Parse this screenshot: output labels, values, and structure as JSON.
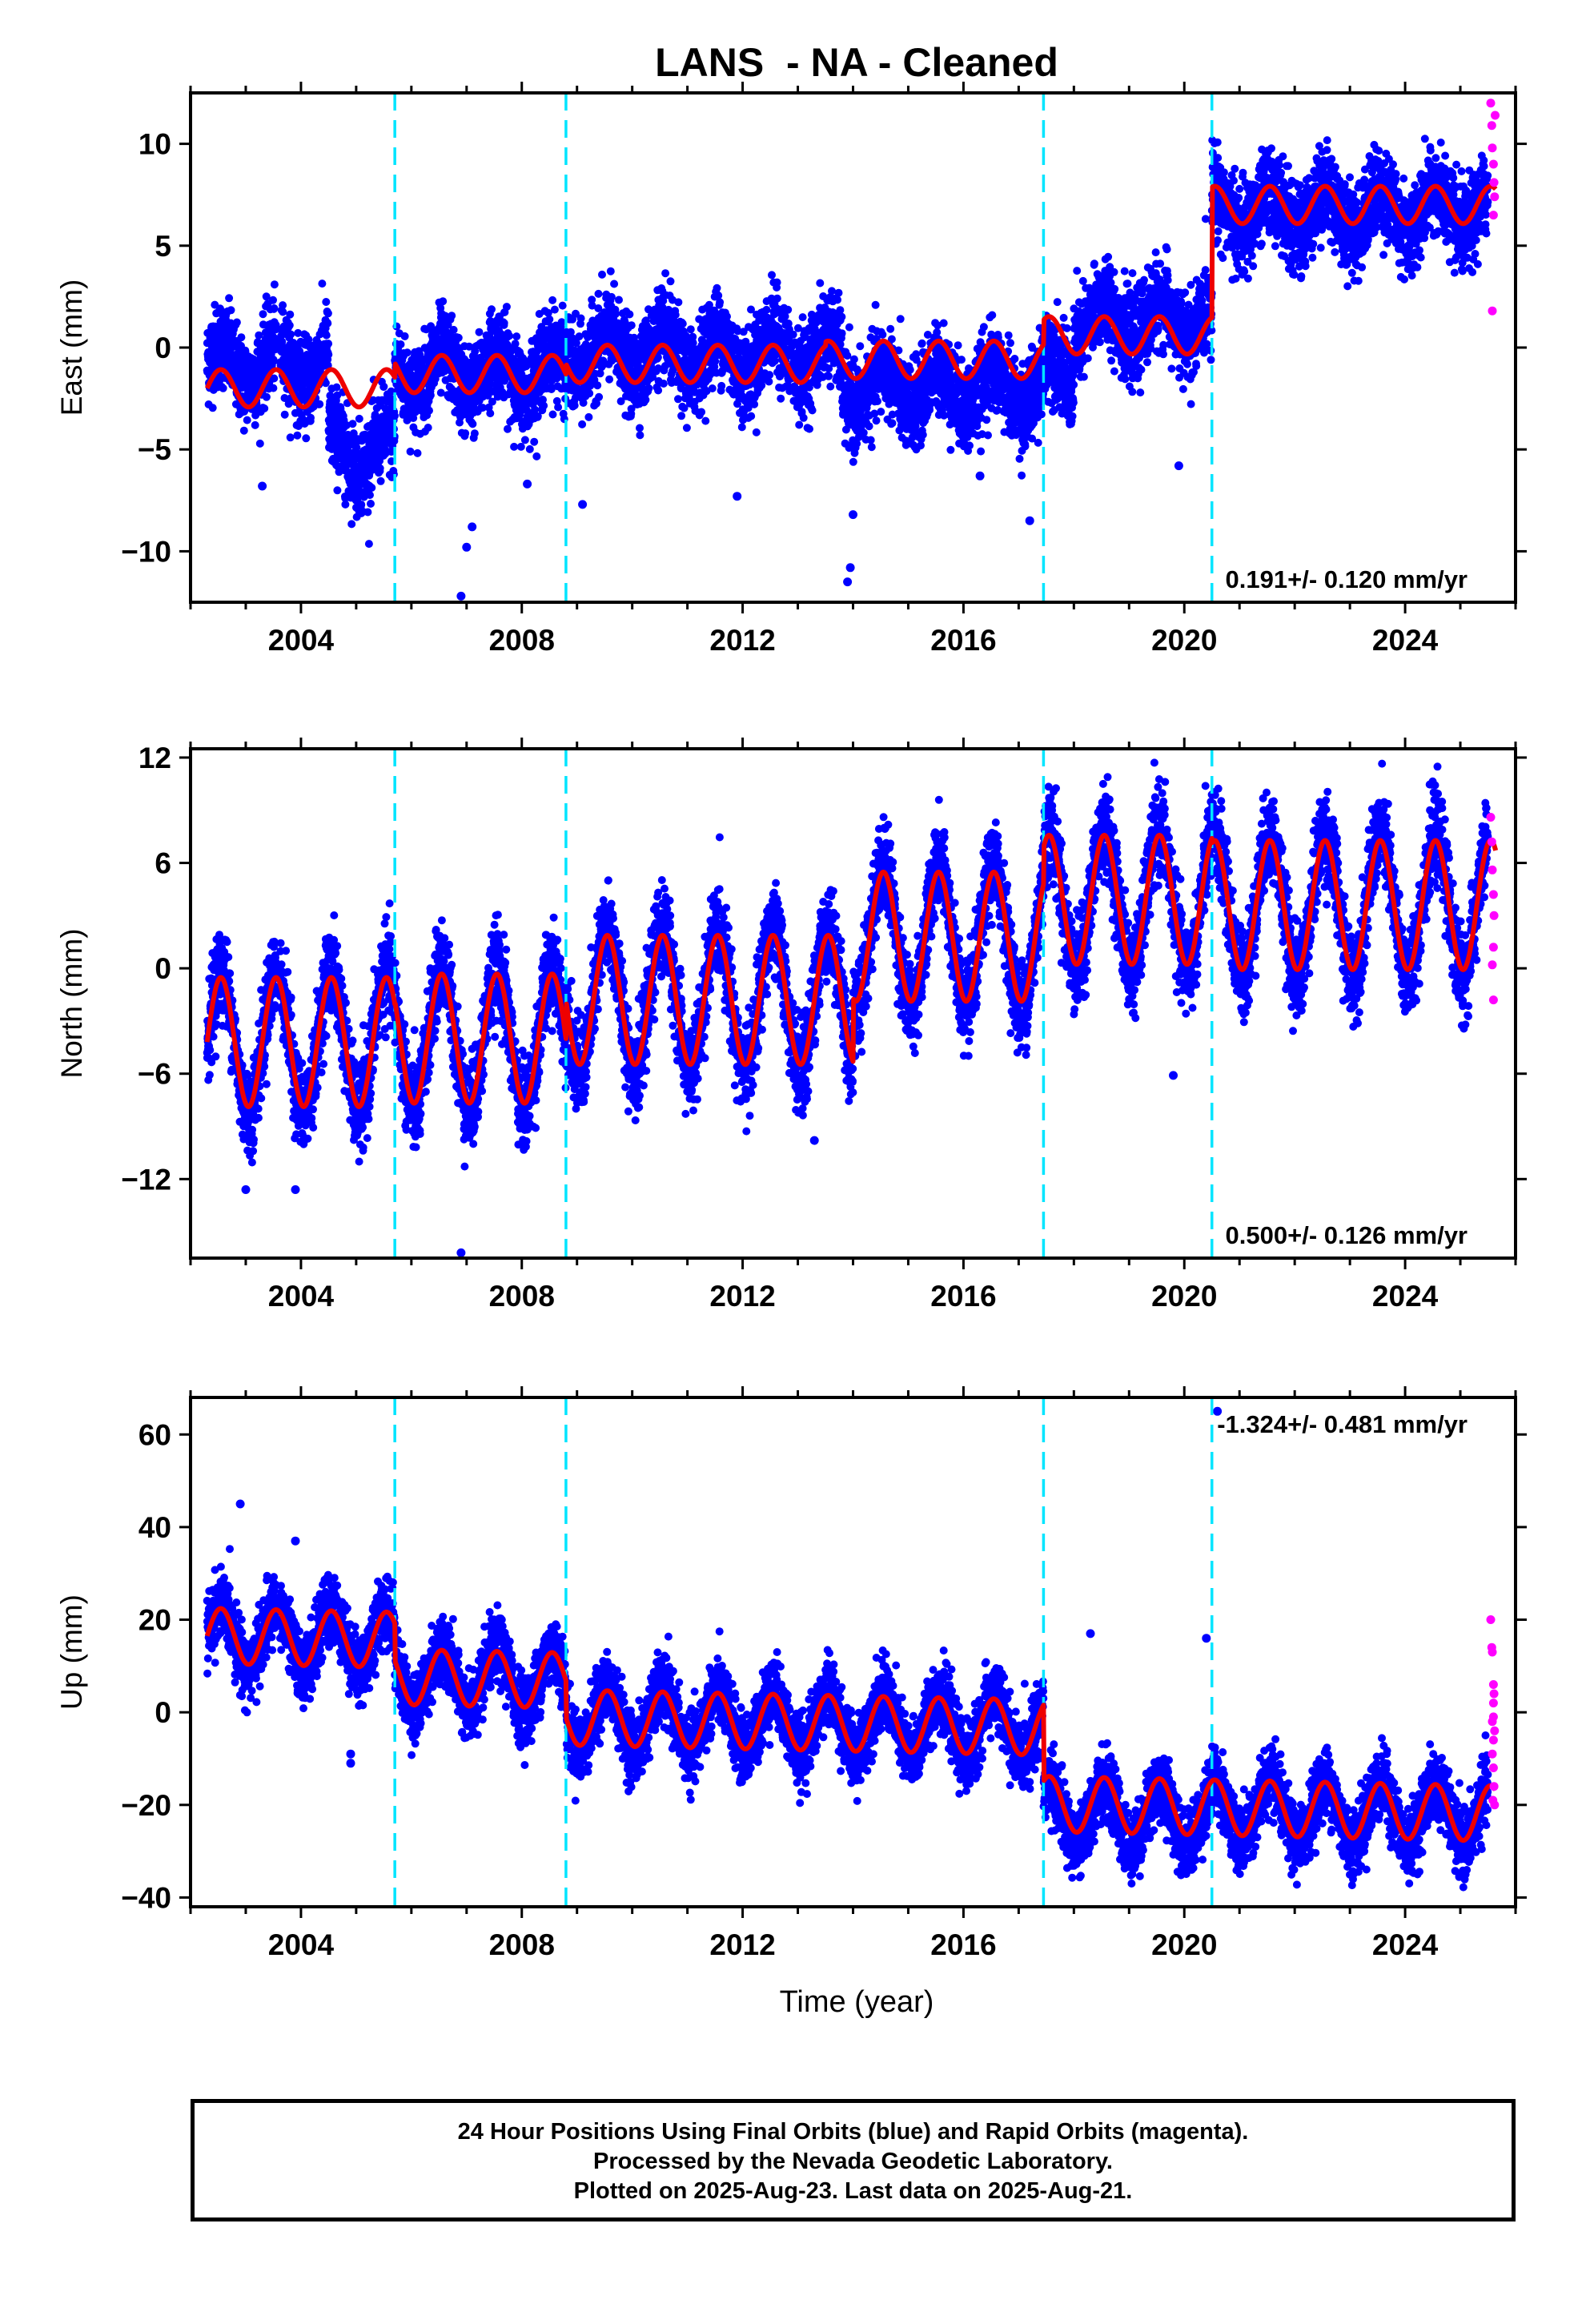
{
  "chart_data": {
    "type": "scatter",
    "title": "LANS  - NA - Cleaned",
    "xlabel": "Time (year)",
    "xlim": [
      2002.0,
      2026.0
    ],
    "x_ticks": [
      2004,
      2008,
      2012,
      2016,
      2020,
      2024
    ],
    "x_tick_labels": [
      "2004",
      "2008",
      "2012",
      "2016",
      "2020",
      "2024"
    ],
    "x_last_final": 2025.5,
    "x_end": 2025.64,
    "equipment_changes": [
      2005.7,
      2008.8,
      2017.45,
      2020.5
    ],
    "colors": {
      "final": "#0000ff",
      "rapid": "#ff00ff",
      "model": "#ee0000",
      "breaks": "#00e5ff",
      "frame": "#000000"
    },
    "legend_text": "",
    "panels": [
      {
        "key": "east",
        "ylabel": "East (mm)",
        "ylim": [
          -12.5,
          12.5
        ],
        "y_ticks": [
          -10,
          -5,
          0,
          5,
          10
        ],
        "y_tick_labels": [
          "−10",
          "−5",
          "0",
          "5",
          "10"
        ],
        "velocity_text": "0.191+/- 0.120 mm/yr",
        "velocity_pos": "bottom-right",
        "noise": 1.05,
        "segments": [
          {
            "start": 2002.3,
            "end": 2004.5,
            "offset": -0.8
          },
          {
            "start": 2004.5,
            "end": 2005.7,
            "offset": -5.0
          },
          {
            "start": 2005.7,
            "end": 2008.8,
            "offset": -1.2
          },
          {
            "start": 2008.8,
            "end": 2013.8,
            "offset": -0.3
          },
          {
            "start": 2013.8,
            "end": 2017.45,
            "offset": -2.0
          },
          {
            "start": 2017.45,
            "end": 2018.0,
            "offset": -1.2
          },
          {
            "start": 2018.0,
            "end": 2020.5,
            "offset": 1.3
          },
          {
            "start": 2020.5,
            "end": 2025.64,
            "offset": 6.7
          }
        ],
        "model_segments": [
          {
            "start": 2002.3,
            "end": 2005.7,
            "offset": -2.0
          },
          {
            "start": 2005.7,
            "end": 2008.8,
            "offset": -1.3
          },
          {
            "start": 2008.8,
            "end": 2013.5,
            "offset": -0.8
          },
          {
            "start": 2013.5,
            "end": 2017.45,
            "offset": -0.6
          },
          {
            "start": 2017.45,
            "end": 2020.5,
            "offset": 0.6
          },
          {
            "start": 2020.5,
            "end": 2025.64,
            "offset": 7.0
          }
        ],
        "seasonal_amp": 1.0,
        "phase": 0.55,
        "outliers": [
          [
            2006.9,
            -12.2
          ],
          [
            2007.0,
            -9.8
          ],
          [
            2007.1,
            -8.8
          ],
          [
            2013.9,
            -11.5
          ],
          [
            2013.95,
            -10.8
          ],
          [
            2014.0,
            -8.2
          ],
          [
            2011.9,
            -7.3
          ],
          [
            2009.1,
            -7.7
          ],
          [
            2008.1,
            -6.7
          ],
          [
            2003.3,
            -6.8
          ],
          [
            2016.3,
            -6.3
          ],
          [
            2017.2,
            -8.5
          ],
          [
            2019.9,
            -5.8
          ]
        ],
        "rapid_points": [
          [
            2025.55,
            12.0
          ],
          [
            2025.57,
            10.9
          ],
          [
            2025.58,
            9.8
          ],
          [
            2025.6,
            9.0
          ],
          [
            2025.61,
            8.1
          ],
          [
            2025.62,
            7.4
          ],
          [
            2025.6,
            6.5
          ],
          [
            2025.58,
            1.8
          ],
          [
            2025.63,
            11.4
          ]
        ]
      },
      {
        "key": "north",
        "ylabel": "North (mm)",
        "ylim": [
          -16.5,
          12.5
        ],
        "y_ticks": [
          -12,
          -6,
          0,
          6,
          12
        ],
        "y_tick_labels": [
          "−12",
          "−6",
          "0",
          "6",
          "12"
        ],
        "velocity_text": "0.500+/- 0.126 mm/yr",
        "velocity_pos": "bottom-right",
        "noise": 1.25,
        "segments": [
          {
            "start": 2002.3,
            "end": 2005.7,
            "offset": -4.2
          },
          {
            "start": 2005.7,
            "end": 2008.8,
            "offset": -4.0
          },
          {
            "start": 2008.8,
            "end": 2014.0,
            "offset": -1.8
          },
          {
            "start": 2014.0,
            "end": 2017.45,
            "offset": 1.8
          },
          {
            "start": 2017.45,
            "end": 2020.5,
            "offset": 3.9
          },
          {
            "start": 2020.5,
            "end": 2025.64,
            "offset": 3.6
          }
        ],
        "model_segments": [
          {
            "start": 2002.3,
            "end": 2005.7,
            "offset": -4.2
          },
          {
            "start": 2005.7,
            "end": 2008.8,
            "offset": -4.0
          },
          {
            "start": 2008.8,
            "end": 2014.0,
            "offset": -1.8
          },
          {
            "start": 2014.0,
            "end": 2017.45,
            "offset": 1.8
          },
          {
            "start": 2017.45,
            "end": 2020.5,
            "offset": 3.9
          },
          {
            "start": 2020.5,
            "end": 2025.64,
            "offset": 3.6
          }
        ],
        "seasonal_amp": 4.0,
        "phase": 0.55,
        "outliers": [
          [
            2006.9,
            -16.2
          ],
          [
            2003.0,
            -12.6
          ],
          [
            2003.9,
            -12.6
          ],
          [
            2019.8,
            -6.1
          ],
          [
            2013.3,
            -9.8
          ]
        ],
        "rapid_points": [
          [
            2025.55,
            8.6
          ],
          [
            2025.57,
            7.2
          ],
          [
            2025.58,
            5.6
          ],
          [
            2025.6,
            4.2
          ],
          [
            2025.61,
            3.0
          ],
          [
            2025.6,
            1.2
          ],
          [
            2025.58,
            0.2
          ],
          [
            2025.6,
            -1.8
          ]
        ]
      },
      {
        "key": "up",
        "ylabel": "Up (mm)",
        "ylim": [
          -42,
          68
        ],
        "y_ticks": [
          -40,
          -20,
          0,
          20,
          40,
          60
        ],
        "y_tick_labels": [
          "−40",
          "−20",
          "0",
          "20",
          "40",
          "60"
        ],
        "velocity_text": "-1.324+/- 0.481 mm/yr",
        "velocity_pos": "top-right",
        "noise": 3.6,
        "segments": [
          {
            "start": 2002.3,
            "end": 2005.7,
            "offset": 16.5
          },
          {
            "start": 2005.7,
            "end": 2008.8,
            "offset": 8.5
          },
          {
            "start": 2008.8,
            "end": 2017.45,
            "offset": 0.5
          },
          {
            "start": 2017.45,
            "end": 2020.5,
            "offset": -18.0
          },
          {
            "start": 2020.5,
            "end": 2025.64,
            "offset": -16.5
          }
        ],
        "model_segments": [
          {
            "start": 2002.3,
            "end": 2005.7,
            "offset": 16.5
          },
          {
            "start": 2005.7,
            "end": 2008.8,
            "offset": 8.5
          },
          {
            "start": 2008.8,
            "end": 2017.45,
            "offset": 0.5
          },
          {
            "start": 2017.45,
            "end": 2020.5,
            "offset": -16.0
          },
          {
            "start": 2020.5,
            "end": 2025.64,
            "offset": -16.0
          }
        ],
        "trend": -0.25,
        "seasonal_amp": 6.5,
        "phase": 0.55,
        "outliers": [
          [
            2002.9,
            45
          ],
          [
            2003.9,
            37
          ],
          [
            2004.9,
            -11
          ],
          [
            2004.9,
            -9
          ],
          [
            2020.4,
            16
          ],
          [
            2020.6,
            65
          ],
          [
            2018.3,
            17
          ]
        ],
        "rapid_points": [
          [
            2025.55,
            20
          ],
          [
            2025.57,
            14
          ],
          [
            2025.58,
            13
          ],
          [
            2025.6,
            6
          ],
          [
            2025.61,
            4
          ],
          [
            2025.6,
            2
          ],
          [
            2025.58,
            -2
          ],
          [
            2025.62,
            -4
          ],
          [
            2025.6,
            -6
          ],
          [
            2025.58,
            -9
          ],
          [
            2025.6,
            -12
          ],
          [
            2025.61,
            -16
          ],
          [
            2025.59,
            -19
          ],
          [
            2025.62,
            -20
          ],
          [
            2025.6,
            -1
          ]
        ]
      }
    ]
  },
  "footer": {
    "line1": "24 Hour Positions Using Final Orbits (blue) and Rapid Orbits (magenta).",
    "line2": "Processed by the Nevada Geodetic Laboratory.",
    "line3": "Plotted on 2025-Aug-23. Last data on 2025-Aug-21."
  }
}
